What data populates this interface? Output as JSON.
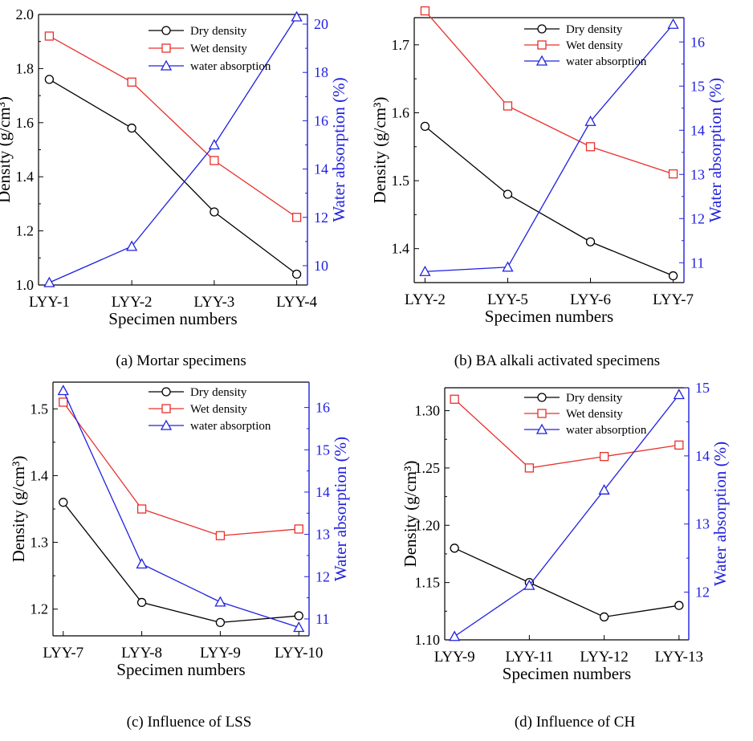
{
  "legend_labels": {
    "dry": "Dry density",
    "wet": "Wet density",
    "water": "water absorption"
  },
  "colors": {
    "dry": "#000000",
    "wet": "#e8302a",
    "water": "#2020e0",
    "axis": "#000000"
  },
  "chart_data": [
    {
      "type": "line",
      "title": "(a) Mortar specimens",
      "xlabel": "Specimen numbers",
      "ylabel": "Density (g/cm³)",
      "y2label": "Water absorption (%)",
      "categories": [
        "LYY-1",
        "LYY-2",
        "LYY-3",
        "LYY-4"
      ],
      "ylim": [
        1.0,
        2.0
      ],
      "y2lim": [
        9.2,
        20.4
      ],
      "yticks": [
        1.0,
        1.2,
        1.4,
        1.6,
        1.8,
        2.0
      ],
      "y2ticks": [
        10,
        12,
        14,
        16,
        18,
        20
      ],
      "ytick_decimals": 1,
      "legend_position": "top-center",
      "series": [
        {
          "name": "Dry density",
          "axis": "left",
          "values": [
            1.76,
            1.58,
            1.27,
            1.04
          ]
        },
        {
          "name": "Wet density",
          "axis": "left",
          "values": [
            1.92,
            1.75,
            1.46,
            1.25
          ]
        },
        {
          "name": "water absorption",
          "axis": "right",
          "values": [
            9.3,
            10.8,
            15.0,
            20.3
          ]
        }
      ]
    },
    {
      "type": "line",
      "title": "(b) BA alkali activated specimens",
      "xlabel": "Specimen numbers",
      "ylabel": "Density (g/cm³)",
      "y2label": "Water absorption (%)",
      "categories": [
        "LYY-2",
        "LYY-5",
        "LYY-6",
        "LYY-7"
      ],
      "ylim": [
        1.35,
        1.74
      ],
      "y2lim": [
        10.55,
        16.55
      ],
      "yticks": [
        1.4,
        1.5,
        1.6,
        1.7
      ],
      "y2ticks": [
        11,
        12,
        13,
        14,
        15,
        16
      ],
      "ytick_decimals": 1,
      "legend_position": "top-center",
      "series": [
        {
          "name": "Dry density",
          "axis": "left",
          "values": [
            1.58,
            1.48,
            1.41,
            1.36
          ]
        },
        {
          "name": "Wet density",
          "axis": "left",
          "values": [
            1.75,
            1.61,
            1.55,
            1.51
          ]
        },
        {
          "name": "water absorption",
          "axis": "right",
          "values": [
            10.8,
            10.9,
            14.2,
            16.4
          ]
        }
      ]
    },
    {
      "type": "line",
      "title": "(c) Influence of LSS",
      "xlabel": "Specimen numbers",
      "ylabel": "Density (g/cm³)",
      "y2label": "Water absorption (%)",
      "categories": [
        "LYY-7",
        "LYY-8",
        "LYY-9",
        "LYY-10"
      ],
      "ylim": [
        1.16,
        1.54
      ],
      "y2lim": [
        10.6,
        16.6
      ],
      "yticks": [
        1.2,
        1.3,
        1.4,
        1.5
      ],
      "y2ticks": [
        11,
        12,
        13,
        14,
        15,
        16
      ],
      "ytick_decimals": 1,
      "legend_position": "top-center",
      "series": [
        {
          "name": "Dry density",
          "axis": "left",
          "values": [
            1.36,
            1.21,
            1.18,
            1.19
          ]
        },
        {
          "name": "Wet density",
          "axis": "left",
          "values": [
            1.51,
            1.35,
            1.31,
            1.32
          ]
        },
        {
          "name": "water absorption",
          "axis": "right",
          "values": [
            16.4,
            12.3,
            11.4,
            10.8
          ]
        }
      ]
    },
    {
      "type": "line",
      "title": "(d) Influence of CH",
      "xlabel": "Specimen numbers",
      "ylabel": "Density (g/cm³)",
      "y2label": "Water absorption (%)",
      "categories": [
        "LYY-9",
        "LYY-11",
        "LYY-12",
        "LYY-13"
      ],
      "ylim": [
        1.1,
        1.32
      ],
      "y2lim": [
        11.3,
        15.0
      ],
      "yticks": [
        1.1,
        1.15,
        1.2,
        1.25,
        1.3
      ],
      "y2ticks": [
        12,
        13,
        14,
        15
      ],
      "ytick_decimals": 2,
      "legend_position": "top-center",
      "series": [
        {
          "name": "Dry density",
          "axis": "left",
          "values": [
            1.18,
            1.15,
            1.12,
            1.13
          ]
        },
        {
          "name": "Wet density",
          "axis": "left",
          "values": [
            1.31,
            1.25,
            1.26,
            1.27
          ]
        },
        {
          "name": "water absorption",
          "axis": "right",
          "values": [
            11.35,
            12.1,
            13.5,
            14.9
          ]
        }
      ]
    }
  ]
}
